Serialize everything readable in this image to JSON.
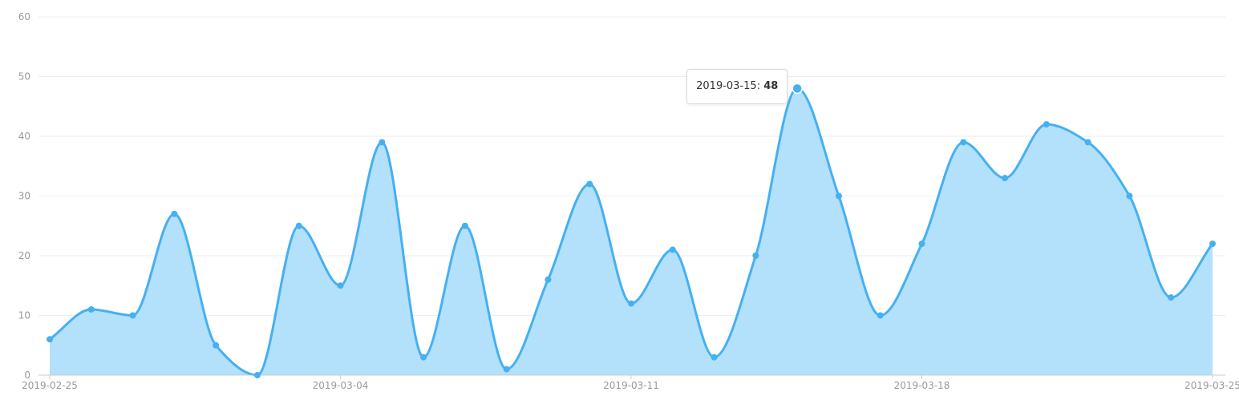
{
  "chart_data": {
    "type": "area",
    "title": "",
    "xlabel": "",
    "ylabel": "",
    "x": [
      "2019-02-25",
      "2019-02-26",
      "2019-02-27",
      "2019-02-28",
      "2019-03-01",
      "2019-03-02",
      "2019-03-03",
      "2019-03-04",
      "2019-03-05",
      "2019-03-06",
      "2019-03-07",
      "2019-03-08",
      "2019-03-09",
      "2019-03-10",
      "2019-03-11",
      "2019-03-12",
      "2019-03-13",
      "2019-03-14",
      "2019-03-15",
      "2019-03-16",
      "2019-03-17",
      "2019-03-18",
      "2019-03-19",
      "2019-03-20",
      "2019-03-21",
      "2019-03-22",
      "2019-03-23",
      "2019-03-24",
      "2019-03-25"
    ],
    "values": [
      6,
      11,
      10,
      27,
      5,
      0,
      25,
      15,
      39,
      3,
      25,
      1,
      16,
      32,
      12,
      21,
      3,
      20,
      48,
      30,
      10,
      22,
      39,
      33,
      42,
      39,
      30,
      13,
      22
    ],
    "x_tick_labels": [
      "2019-02-25",
      "2019-03-04",
      "2019-03-11",
      "2019-03-18",
      "2019-03-25"
    ],
    "y_tick_labels": [
      "0",
      "10",
      "20",
      "30",
      "40",
      "50",
      "60"
    ],
    "ylim": [
      0,
      60
    ],
    "grid": "horizontal",
    "smooth": true,
    "colors": {
      "line": "#45b0f2",
      "fill": "#b3e0fa",
      "grid": "#eeeeee",
      "axis": "#cccccc"
    }
  },
  "tooltip": {
    "label": "2019-03-15:",
    "value": "48"
  }
}
